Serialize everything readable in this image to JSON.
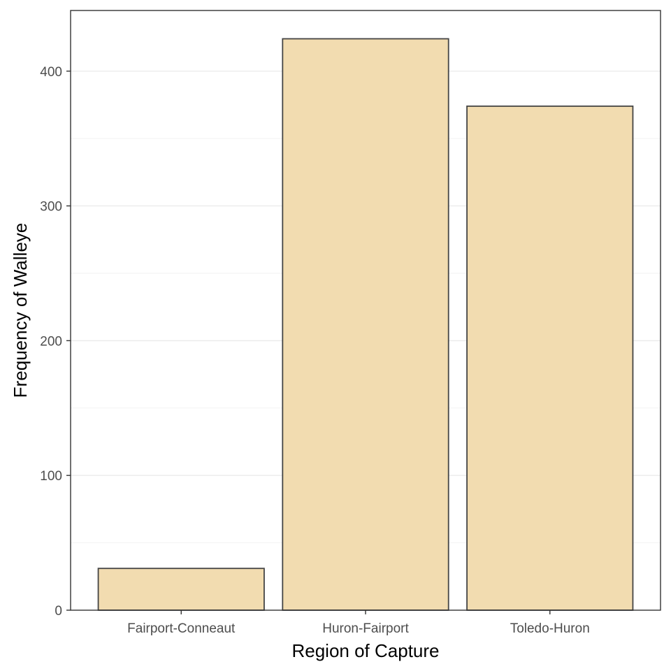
{
  "chart_data": {
    "type": "bar",
    "title": "",
    "xlabel": "Region of Capture",
    "ylabel": "Frequency of Walleye",
    "categories": [
      "Fairport-Conneaut",
      "Huron-Fairport",
      "Toledo-Huron"
    ],
    "values": [
      31,
      424,
      374
    ],
    "ylim": [
      0,
      445
    ],
    "yticks": [
      "0",
      "100",
      "200",
      "300",
      "400"
    ],
    "grid": true,
    "bar_fill": "#f2dcb0",
    "bar_stroke": "#444444"
  }
}
